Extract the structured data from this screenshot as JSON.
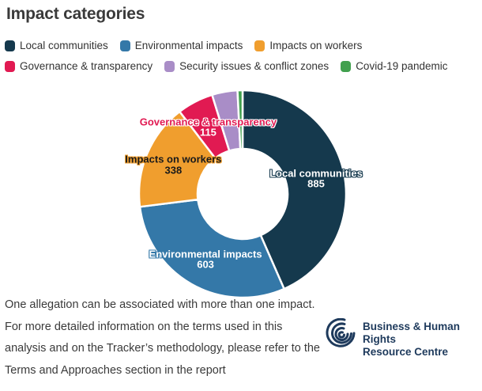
{
  "title": "Impact categories",
  "colors": {
    "local_communities": "#15394d",
    "environmental_impacts": "#3478a8",
    "impacts_on_workers": "#f09e2e",
    "governance_transparency": "#e11a52",
    "security_conflict": "#a98dc7",
    "covid19": "#41a04e",
    "text": "#3a3a3a",
    "logo_navy": "#1e3a5c"
  },
  "legend": {
    "items": [
      {
        "label": "Local communities",
        "color": "#15394d"
      },
      {
        "label": "Environmental impacts",
        "color": "#3478a8"
      },
      {
        "label": "Impacts on workers",
        "color": "#f09e2e"
      },
      {
        "label": "Governance & transparency",
        "color": "#e11a52"
      },
      {
        "label": "Security issues & conflict zones",
        "color": "#a98dc7"
      },
      {
        "label": "Covid-19 pandemic",
        "color": "#41a04e"
      }
    ]
  },
  "chart_data": {
    "type": "pie",
    "subtype": "donut",
    "title": "Impact categories",
    "legend_position": "top",
    "start_angle_deg": 0,
    "direction": "clockwise",
    "series": [
      {
        "name": "Local communities",
        "value": 885,
        "color": "#15394d",
        "label_shown": true,
        "label_text": "Local communities",
        "value_text": "885",
        "label_color": "#ffffff",
        "label_halo": "#15394d",
        "value_color": "#ffffff",
        "value_halo": "#15394d"
      },
      {
        "name": "Environmental impacts",
        "value": 603,
        "color": "#3478a8",
        "label_shown": true,
        "label_text": "Environmental impacts",
        "value_text": "603",
        "label_color": "#ffffff",
        "label_halo": "#3478a8",
        "value_color": "#ffffff",
        "value_halo": "#3478a8"
      },
      {
        "name": "Impacts on workers",
        "value": 338,
        "color": "#f09e2e",
        "label_shown": true,
        "label_text": "Impacts on workers",
        "value_text": "338",
        "label_color": "#1a1a1a",
        "label_halo": "#f09e2e",
        "value_color": "#1a1a1a",
        "value_halo": "#f09e2e"
      },
      {
        "name": "Governance & transparency",
        "value": 115,
        "color": "#e11a52",
        "label_shown": true,
        "label_text": "Governance & transparency",
        "value_text": "115",
        "label_color": "#e11a52",
        "label_halo": "#ffffff",
        "value_color": "#ffffff",
        "value_halo": "#e11a52"
      },
      {
        "name": "Security issues & conflict zones",
        "value": 81,
        "estimated": true,
        "color": "#a98dc7",
        "label_shown": false
      },
      {
        "name": "Covid-19 pandemic",
        "value": 16,
        "estimated": true,
        "color": "#41a04e",
        "label_shown": false
      }
    ]
  },
  "footer": {
    "lines": [
      "One allegation can be associated with more than one impact.",
      "For more detailed information on the terms used in this",
      "analysis and on the Tracker’s methodology, please refer to the",
      "Terms and Approaches section in the report"
    ]
  },
  "logo": {
    "line1": "Business & Human Rights",
    "line2": "Resource Centre"
  }
}
